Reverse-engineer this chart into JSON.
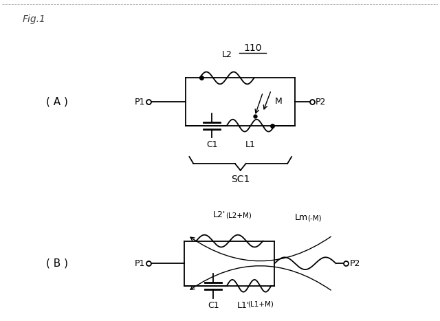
{
  "bg_color": "#ffffff",
  "line_color": "#000000",
  "fig_width": 6.4,
  "fig_height": 4.67,
  "dpi": 100,
  "fig_label": "Fig.1",
  "A_label": "( A )",
  "B_label": "( B )",
  "label_110": "110",
  "SC1": "SC1",
  "L2": "L2",
  "L1": "L1",
  "C1": "C1",
  "M": "M",
  "L2p": "L2'",
  "L2paren": "(L2+M)",
  "Lm": "Lm",
  "Lm_paren": "(-M)",
  "C1b": "C1",
  "L1p": "L1'",
  "L1paren": "(L1+M)",
  "P1": "P1",
  "P2": "P2"
}
